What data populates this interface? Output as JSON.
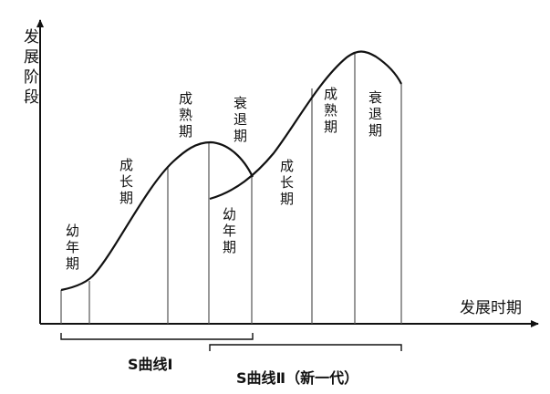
{
  "axes": {
    "y_title": "发展阶段",
    "x_title": "发展时期"
  },
  "curve1": {
    "stages": [
      {
        "id": "c1-youth",
        "text": "幼年期"
      },
      {
        "id": "c1-growth",
        "text": "成长期"
      },
      {
        "id": "c1-mature",
        "text": "成熟期"
      },
      {
        "id": "c1-decline",
        "text": "衰退期"
      }
    ],
    "brace_label": "S曲线Ⅰ"
  },
  "curve2": {
    "stages": [
      {
        "id": "c2-youth",
        "text": "幼年期"
      },
      {
        "id": "c2-growth",
        "text": "成长期"
      },
      {
        "id": "c2-mature",
        "text": "成熟期"
      },
      {
        "id": "c2-decline",
        "text": "衰退期"
      }
    ],
    "brace_label": "S曲线Ⅱ（新一代）"
  },
  "colors": {
    "curve": "#111111",
    "divider": "#555555",
    "axis": "#111111"
  }
}
